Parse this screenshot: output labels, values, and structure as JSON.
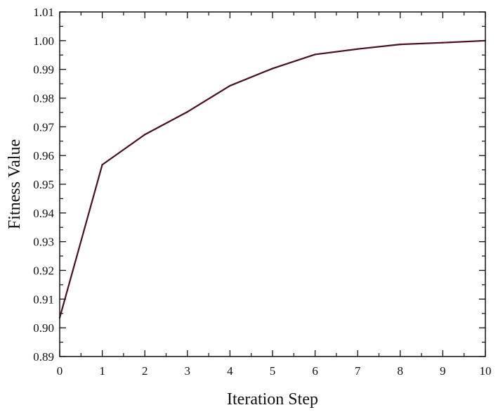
{
  "chart_data": {
    "type": "line",
    "title": "",
    "xlabel": "Iteration Step",
    "ylabel": "Fitness Value",
    "xlim": [
      0,
      10
    ],
    "ylim": [
      0.89,
      1.01
    ],
    "x_ticks": [
      0,
      1,
      2,
      3,
      4,
      5,
      6,
      7,
      8,
      9,
      10
    ],
    "x_tick_labels": [
      "0",
      "1",
      "2",
      "3",
      "4",
      "5",
      "6",
      "7",
      "8",
      "9",
      "10"
    ],
    "y_ticks": [
      0.89,
      0.9,
      0.91,
      0.92,
      0.93,
      0.94,
      0.95,
      0.96,
      0.97,
      0.98,
      0.99,
      1.0,
      1.01
    ],
    "y_tick_labels": [
      "0.89",
      "0.90",
      "0.91",
      "0.92",
      "0.93",
      "0.94",
      "0.95",
      "0.96",
      "0.97",
      "0.98",
      "0.99",
      "1.00",
      "1.01"
    ],
    "grid": false,
    "legend": "none",
    "line_color": "#4a0f22",
    "axis_color": "#111111",
    "series": [
      {
        "x": [
          0,
          1,
          2,
          3,
          4,
          5,
          6,
          7,
          8,
          9,
          10
        ],
        "values": [
          0.9035,
          0.9568,
          0.9673,
          0.9752,
          0.9843,
          0.9903,
          0.9952,
          0.9971,
          0.9987,
          0.9993,
          1.0
        ]
      }
    ]
  }
}
